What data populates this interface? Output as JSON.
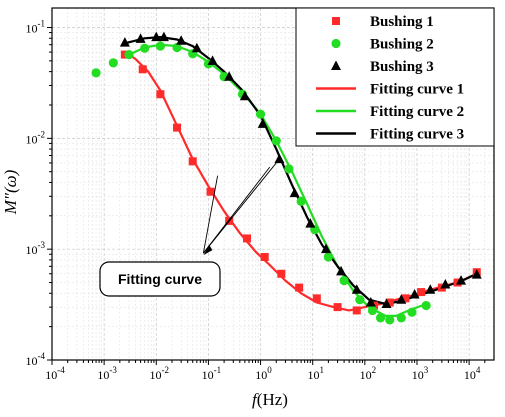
{
  "chart_data": {
    "type": "scatter",
    "title": "",
    "xlabel_italic": "f",
    "xlabel_rest": "(Hz)",
    "ylabel_italic": "M″(ω)",
    "xscale": "log",
    "yscale": "log",
    "xlim": [
      0.0001,
      30000
    ],
    "ylim": [
      0.0001,
      0.15
    ],
    "grid": true,
    "legend_placement": "top-right",
    "x_ticks": [
      {
        "value": 0.0001,
        "base": "10",
        "exp": "-4"
      },
      {
        "value": 0.001,
        "base": "10",
        "exp": "-3"
      },
      {
        "value": 0.01,
        "base": "10",
        "exp": "-2"
      },
      {
        "value": 0.1,
        "base": "10",
        "exp": "-1"
      },
      {
        "value": 1,
        "base": "10",
        "exp": "0"
      },
      {
        "value": 10,
        "base": "10",
        "exp": "1"
      },
      {
        "value": 100,
        "base": "10",
        "exp": "2"
      },
      {
        "value": 1000,
        "base": "10",
        "exp": "3"
      },
      {
        "value": 10000,
        "base": "10",
        "exp": "4"
      }
    ],
    "y_ticks": [
      {
        "value": 0.0001,
        "base": "10",
        "exp": "-4"
      },
      {
        "value": 0.001,
        "base": "10",
        "exp": "-3"
      },
      {
        "value": 0.01,
        "base": "10",
        "exp": "-2"
      },
      {
        "value": 0.1,
        "base": "10",
        "exp": "-1"
      }
    ],
    "series": [
      {
        "name": "Bushing 1",
        "marker": "square",
        "color": "#ff2a2a",
        "points": [
          [
            0.0025,
            0.057
          ],
          [
            0.0055,
            0.042
          ],
          [
            0.012,
            0.025
          ],
          [
            0.025,
            0.0125
          ],
          [
            0.05,
            0.0062
          ],
          [
            0.11,
            0.0033
          ],
          [
            0.25,
            0.0018
          ],
          [
            0.55,
            0.00125
          ],
          [
            1.2,
            0.00085
          ],
          [
            2.5,
            0.0006
          ],
          [
            5.5,
            0.00045
          ],
          [
            12,
            0.00036
          ],
          [
            30,
            0.0003
          ],
          [
            70,
            0.00028
          ],
          [
            150,
            0.00031
          ],
          [
            300,
            0.00033
          ],
          [
            600,
            0.00036
          ],
          [
            1200,
            0.00041
          ],
          [
            3000,
            0.00045
          ],
          [
            6000,
            0.0005
          ],
          [
            14000,
            0.00062
          ]
        ]
      },
      {
        "name": "Bushing 2",
        "marker": "circle",
        "color": "#22dd22",
        "points": [
          [
            0.0007,
            0.039
          ],
          [
            0.0015,
            0.048
          ],
          [
            0.003,
            0.057
          ],
          [
            0.006,
            0.065
          ],
          [
            0.012,
            0.068
          ],
          [
            0.025,
            0.066
          ],
          [
            0.05,
            0.058
          ],
          [
            0.1,
            0.047
          ],
          [
            0.2,
            0.036
          ],
          [
            0.45,
            0.025
          ],
          [
            1,
            0.0165
          ],
          [
            2,
            0.0095
          ],
          [
            3.5,
            0.0053
          ],
          [
            6,
            0.0027
          ],
          [
            11,
            0.0015
          ],
          [
            20,
            0.00085
          ],
          [
            40,
            0.00052
          ],
          [
            80,
            0.00035
          ],
          [
            140,
            0.00028
          ],
          [
            200,
            0.00024
          ],
          [
            300,
            0.00023
          ],
          [
            500,
            0.00024
          ],
          [
            800,
            0.00027
          ],
          [
            1500,
            0.00031
          ]
        ]
      },
      {
        "name": "Bushing 3",
        "marker": "triangle",
        "color": "#000000",
        "points": [
          [
            0.0025,
            0.073
          ],
          [
            0.005,
            0.079
          ],
          [
            0.01,
            0.082
          ],
          [
            0.014,
            0.082
          ],
          [
            0.03,
            0.076
          ],
          [
            0.06,
            0.065
          ],
          [
            0.12,
            0.05
          ],
          [
            0.25,
            0.036
          ],
          [
            0.5,
            0.024
          ],
          [
            1.1,
            0.0135
          ],
          [
            2.3,
            0.0065
          ],
          [
            4.5,
            0.0032
          ],
          [
            9,
            0.0017
          ],
          [
            18,
            0.001
          ],
          [
            35,
            0.00063
          ],
          [
            70,
            0.00043
          ],
          [
            130,
            0.00033
          ],
          [
            260,
            0.00032
          ],
          [
            500,
            0.00035
          ],
          [
            900,
            0.00039
          ],
          [
            1800,
            0.00043
          ],
          [
            3500,
            0.00048
          ],
          [
            7000,
            0.00052
          ],
          [
            14000,
            0.00059
          ]
        ]
      },
      {
        "name": "Fitting curve 1",
        "type": "line",
        "color": "#ff2a2a",
        "points": [
          [
            0.0025,
            0.06
          ],
          [
            0.004,
            0.052
          ],
          [
            0.007,
            0.04
          ],
          [
            0.012,
            0.027
          ],
          [
            0.025,
            0.013
          ],
          [
            0.05,
            0.0065
          ],
          [
            0.1,
            0.0037
          ],
          [
            0.2,
            0.0022
          ],
          [
            0.4,
            0.0014
          ],
          [
            0.8,
            0.00095
          ],
          [
            1.5,
            0.00072
          ],
          [
            3,
            0.00052
          ],
          [
            6,
            0.0004
          ],
          [
            12,
            0.00033
          ],
          [
            25,
            0.0003
          ],
          [
            50,
            0.00028
          ],
          [
            100,
            0.0003
          ],
          [
            200,
            0.00032
          ],
          [
            400,
            0.00035
          ],
          [
            800,
            0.00038
          ],
          [
            1500,
            0.00042
          ],
          [
            3000,
            0.00046
          ],
          [
            6000,
            0.0005
          ],
          [
            14000,
            0.0006
          ]
        ]
      },
      {
        "name": "Fitting curve 2",
        "type": "line",
        "color": "#22dd22",
        "points": [
          [
            0.003,
            0.057
          ],
          [
            0.006,
            0.066
          ],
          [
            0.012,
            0.07
          ],
          [
            0.025,
            0.068
          ],
          [
            0.05,
            0.06
          ],
          [
            0.1,
            0.049
          ],
          [
            0.2,
            0.038
          ],
          [
            0.45,
            0.026
          ],
          [
            1,
            0.0165
          ],
          [
            2,
            0.0095
          ],
          [
            4,
            0.005
          ],
          [
            8,
            0.0025
          ],
          [
            15,
            0.0013
          ],
          [
            30,
            0.0007
          ],
          [
            60,
            0.00042
          ],
          [
            120,
            0.0003
          ],
          [
            250,
            0.00025
          ],
          [
            400,
            0.00025
          ],
          [
            700,
            0.00028
          ],
          [
            1500,
            0.00032
          ]
        ]
      },
      {
        "name": "Fitting curve 3",
        "type": "line",
        "color": "#000000",
        "points": [
          [
            0.0025,
            0.072
          ],
          [
            0.006,
            0.08
          ],
          [
            0.012,
            0.082
          ],
          [
            0.025,
            0.078
          ],
          [
            0.05,
            0.068
          ],
          [
            0.1,
            0.053
          ],
          [
            0.2,
            0.04
          ],
          [
            0.45,
            0.027
          ],
          [
            1,
            0.016
          ],
          [
            2,
            0.008
          ],
          [
            4,
            0.0038
          ],
          [
            8,
            0.0019
          ],
          [
            15,
            0.0011
          ],
          [
            30,
            0.0007
          ],
          [
            60,
            0.00047
          ],
          [
            120,
            0.00035
          ],
          [
            250,
            0.00032
          ],
          [
            500,
            0.00034
          ],
          [
            1000,
            0.00038
          ],
          [
            2000,
            0.00042
          ],
          [
            4000,
            0.00047
          ],
          [
            8000,
            0.00053
          ],
          [
            14000,
            0.0006
          ]
        ]
      }
    ],
    "annotation": {
      "text": "Fitting curve",
      "pointers_to": [
        [
          0.15,
          0.0046
        ],
        [
          1.5,
          0.0055
        ],
        [
          2.0,
          0.006
        ]
      ]
    }
  }
}
